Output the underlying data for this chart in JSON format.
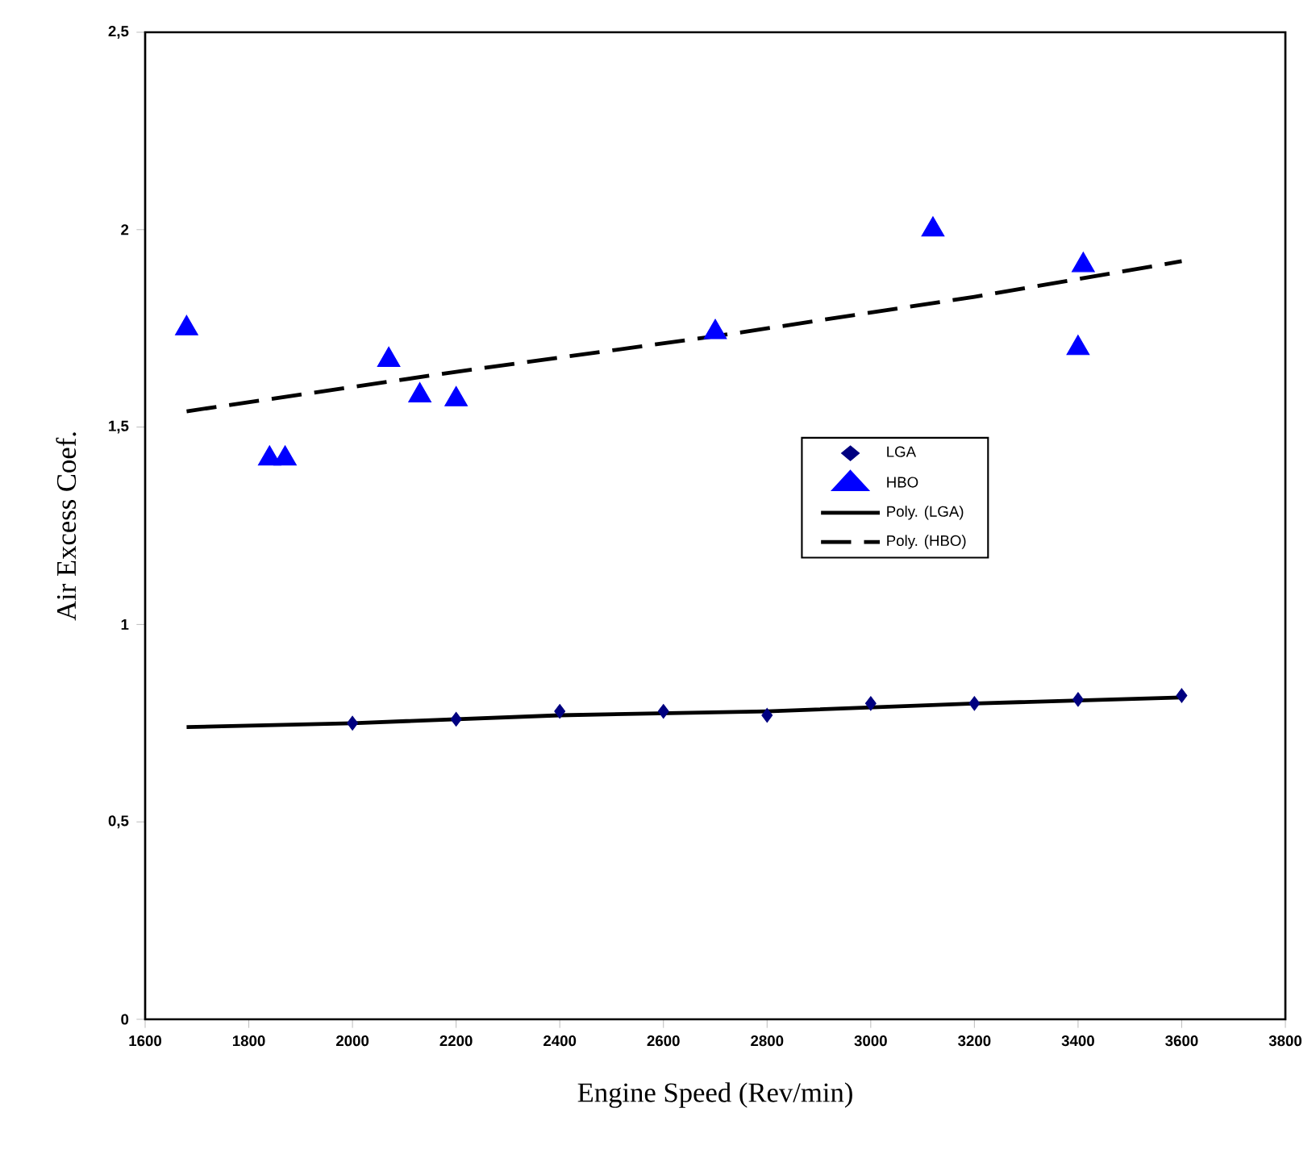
{
  "chart_data": {
    "type": "scatter",
    "xlabel": "Engine Speed (Rev/min)",
    "ylabel": "Air Excess Coef.",
    "xlim": [
      1600,
      3800
    ],
    "ylim": [
      0,
      2.5
    ],
    "xticks": [
      1600,
      1800,
      2000,
      2200,
      2400,
      2600,
      2800,
      3000,
      3200,
      3400,
      3600,
      3800
    ],
    "yticks": [
      0,
      {
        "value": 0.5,
        "label": "0,5"
      },
      1,
      {
        "value": 1.5,
        "label": "1,5"
      },
      2,
      {
        "value": 2.5,
        "label": "2,5"
      }
    ],
    "grid": false,
    "legend": "right",
    "series": [
      {
        "name": "LGA",
        "marker": "diamond",
        "color": "#000080",
        "x": [
          2000,
          2200,
          2400,
          2600,
          2800,
          3000,
          3200,
          3400,
          3600
        ],
        "values": [
          0.75,
          0.76,
          0.78,
          0.78,
          0.77,
          0.8,
          0.8,
          0.81,
          0.82
        ]
      },
      {
        "name": "HBO",
        "marker": "triangle",
        "color": "#0000ff",
        "x": [
          1680,
          1840,
          1870,
          2070,
          2130,
          2200,
          2700,
          3120,
          3410,
          3400
        ],
        "values": [
          1.75,
          1.42,
          1.42,
          1.67,
          1.58,
          1.57,
          1.74,
          2.0,
          1.91,
          1.7
        ]
      },
      {
        "name": "Poly. (LGA)",
        "type": "line",
        "marker": "none",
        "line_style": "solid",
        "color": "#000000",
        "x": [
          1680,
          2000,
          2400,
          2800,
          3200,
          3600
        ],
        "values": [
          0.74,
          0.75,
          0.77,
          0.78,
          0.8,
          0.815
        ]
      },
      {
        "name": "Poly. (HBO)",
        "type": "line",
        "marker": "none",
        "line_style": "dashed",
        "color": "#000000",
        "x": [
          1680,
          2200,
          2700,
          3200,
          3600
        ],
        "values": [
          1.54,
          1.64,
          1.73,
          1.83,
          1.92
        ]
      }
    ]
  }
}
